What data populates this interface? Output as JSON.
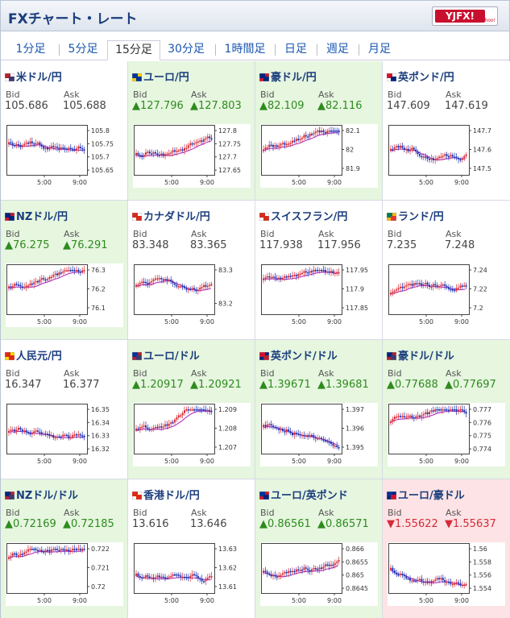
{
  "header": {
    "title": "FXチャート・レート",
    "logo": {
      "main": "YJFX!",
      "sub": "Yahoo!"
    }
  },
  "tabs": [
    "1分足",
    "5分足",
    "15分足",
    "30分足",
    "1時間足",
    "日足",
    "週足",
    "月足"
  ],
  "active_tab": "15分足",
  "labels": {
    "bid": "Bid",
    "ask": "Ask"
  },
  "colors": {
    "up": "#2e8b1e",
    "down": "#d62b36",
    "up_bg": "#e6f6df",
    "down_bg": "#fde3e5",
    "candle_up": "#d62b36",
    "candle_down": "#1a2fb0",
    "ma": "#b020c0"
  },
  "pairs": [
    {
      "name": "米ドル/円",
      "icon": "us-flag-icon",
      "trend": "neutral",
      "bid": "105.686",
      "ask": "105.688",
      "ticks": [
        "105.8",
        "105.75",
        "105.7",
        "105.65"
      ],
      "times": [
        "5:00",
        "9:00"
      ]
    },
    {
      "name": "ユーロ/円",
      "icon": "eu-flag-icon",
      "trend": "up",
      "bid": "▲127.796",
      "ask": "▲127.803",
      "ticks": [
        "127.8",
        "127.75",
        "127.7",
        "127.65"
      ],
      "times": [
        "5:00",
        "9:00"
      ]
    },
    {
      "name": "豪ドル/円",
      "icon": "au-flag-icon",
      "trend": "up",
      "bid": "▲82.109",
      "ask": "▲82.116",
      "ticks": [
        "82.1",
        "82",
        "81.9"
      ],
      "times": [
        "5:00",
        "9:00"
      ]
    },
    {
      "name": "英ポンド/円",
      "icon": "gb-flag-icon",
      "trend": "neutral",
      "bid": "147.609",
      "ask": "147.619",
      "ticks": [
        "147.7",
        "147.6",
        "147.5"
      ],
      "times": [
        "5:00",
        "9:00"
      ]
    },
    {
      "name": "NZドル/円",
      "icon": "nz-flag-icon",
      "trend": "up",
      "bid": "▲76.275",
      "ask": "▲76.291",
      "ticks": [
        "76.3",
        "76.2",
        "76.1"
      ],
      "times": [
        "5:00",
        "9:00"
      ]
    },
    {
      "name": "カナダドル/円",
      "icon": "ca-flag-icon",
      "trend": "neutral",
      "bid": "83.348",
      "ask": "83.365",
      "ticks": [
        "83.3",
        "83.2"
      ],
      "times": [
        "5:00",
        "9:00"
      ]
    },
    {
      "name": "スイスフラン/円",
      "icon": "ch-flag-icon",
      "trend": "neutral",
      "bid": "117.938",
      "ask": "117.956",
      "ticks": [
        "117.95",
        "117.9",
        "117.85"
      ],
      "times": [
        "5:00",
        "9:00"
      ]
    },
    {
      "name": "ランド/円",
      "icon": "za-flag-icon",
      "trend": "neutral",
      "bid": "7.235",
      "ask": "7.248",
      "ticks": [
        "7.24",
        "7.22",
        "7.2"
      ],
      "times": [
        "5:00",
        "9:00"
      ]
    },
    {
      "name": "人民元/円",
      "icon": "cn-flag-icon",
      "trend": "neutral",
      "bid": "16.347",
      "ask": "16.377",
      "ticks": [
        "16.35",
        "16.34",
        "16.33",
        "16.32"
      ],
      "times": [
        "5:00",
        "9:00"
      ]
    },
    {
      "name": "ユーロ/ドル",
      "icon": "eu-us-flag-icon",
      "trend": "up",
      "bid": "▲1.20917",
      "ask": "▲1.20921",
      "ticks": [
        "1.209",
        "1.208",
        "1.207"
      ],
      "times": [
        "5:00",
        "9:00"
      ]
    },
    {
      "name": "英ポンド/ドル",
      "icon": "gb-us-flag-icon",
      "trend": "up",
      "bid": "▲1.39671",
      "ask": "▲1.39681",
      "ticks": [
        "1.397",
        "1.396",
        "1.395"
      ],
      "times": [
        "5:00",
        "9:00"
      ]
    },
    {
      "name": "豪ドル/ドル",
      "icon": "au-us-flag-icon",
      "trend": "up",
      "bid": "▲0.77688",
      "ask": "▲0.77697",
      "ticks": [
        "0.777",
        "0.776",
        "0.775",
        "0.774"
      ],
      "times": [
        "5:00",
        "9:00"
      ]
    },
    {
      "name": "NZドル/ドル",
      "icon": "nz-us-flag-icon",
      "trend": "up",
      "bid": "▲0.72169",
      "ask": "▲0.72185",
      "ticks": [
        "0.722",
        "0.721",
        "0.72"
      ],
      "times": [
        "5:00",
        "9:00"
      ]
    },
    {
      "name": "香港ドル/円",
      "icon": "hk-flag-icon",
      "trend": "neutral",
      "bid": "13.616",
      "ask": "13.646",
      "ticks": [
        "13.63",
        "13.62",
        "13.61"
      ],
      "times": [
        "5:00",
        "9:00"
      ]
    },
    {
      "name": "ユーロ/英ポンド",
      "icon": "eu-gb-flag-icon",
      "trend": "up",
      "bid": "▲0.86561",
      "ask": "▲0.86571",
      "ticks": [
        "0.866",
        "0.8655",
        "0.865",
        "0.8645"
      ],
      "times": [
        "5:00",
        "9:00"
      ]
    },
    {
      "name": "ユーロ/豪ドル",
      "icon": "eu-au-flag-icon",
      "trend": "down",
      "bid": "▼1.55622",
      "ask": "▼1.55637",
      "ticks": [
        "1.56",
        "1.558",
        "1.556",
        "1.554"
      ],
      "times": [
        "5:00",
        "9:00"
      ]
    }
  ]
}
